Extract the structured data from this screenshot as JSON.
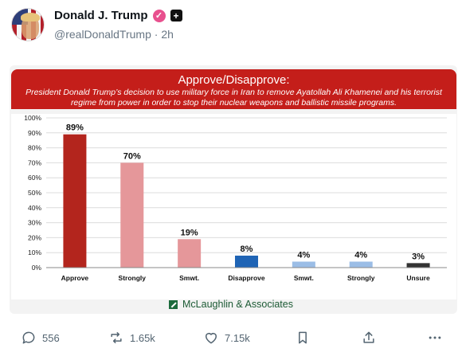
{
  "post": {
    "display_name": "Donald J. Trump",
    "verified_icon": "checkmark-badge-icon",
    "plus_icon": "plus-badge-icon",
    "handle": "@realDonaldTrump",
    "separator": "·",
    "time": "2h"
  },
  "chart_card": {
    "title": "Approve/Disapprove:",
    "subtitle": "President Donald Trump’s decision to use military force in Iran to remove Ayatollah Ali Khamenei and his terrorist regime from power in order to stop their nuclear weapons and ballistic missile programs.",
    "source": "McLaughlin & Associates",
    "colors": {
      "banner": "#c41e1a",
      "source_green": "#1c6b3c"
    }
  },
  "chart_data": {
    "type": "bar",
    "categories": [
      "Approve",
      "Strongly",
      "Smwt.",
      "Disapprove",
      "Smwt.",
      "Strongly",
      "Unsure"
    ],
    "values": [
      89,
      70,
      19,
      8,
      4,
      4,
      3
    ],
    "data_labels": [
      "89%",
      "70%",
      "19%",
      "8%",
      "4%",
      "4%",
      "3%"
    ],
    "bar_colors": [
      "#b3251d",
      "#e5979a",
      "#e5979a",
      "#1f64b5",
      "#9bbde6",
      "#9bbde6",
      "#333333"
    ],
    "yticks": [
      "0%",
      "10%",
      "20%",
      "30%",
      "40%",
      "50%",
      "60%",
      "70%",
      "80%",
      "90%",
      "100%"
    ],
    "ylim": [
      0,
      100
    ],
    "grid": true,
    "legend": "none"
  },
  "actions": {
    "replies": "556",
    "reposts": "1.65k",
    "likes": "7.15k",
    "reply_icon": "comment-icon",
    "repost_icon": "repost-icon",
    "like_icon": "heart-icon",
    "bookmark_icon": "bookmark-icon",
    "share_icon": "share-icon",
    "more_icon": "more-icon"
  }
}
